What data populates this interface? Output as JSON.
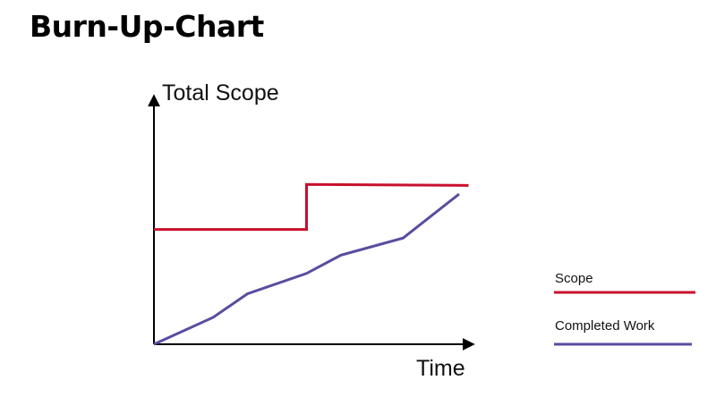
{
  "chart_data": {
    "type": "line",
    "title": "Burn-Up-Chart",
    "xlabel": "Time",
    "ylabel": "Total Scope",
    "grid": false,
    "axis_ticks": false,
    "legend_position": "right",
    "series": [
      {
        "name": "Scope",
        "color": "#c8102e",
        "x": [
          0,
          4.9,
          4.9,
          10.1
        ],
        "y": [
          5.35,
          5.35,
          7.45,
          7.4
        ]
      },
      {
        "name": "Completed Work",
        "color": "#5a4c9e",
        "x": [
          0,
          1.9,
          3.0,
          4.9,
          6.0,
          8.0,
          9.8
        ],
        "y": [
          0,
          1.25,
          2.35,
          3.3,
          4.15,
          4.95,
          7.0
        ]
      }
    ]
  }
}
